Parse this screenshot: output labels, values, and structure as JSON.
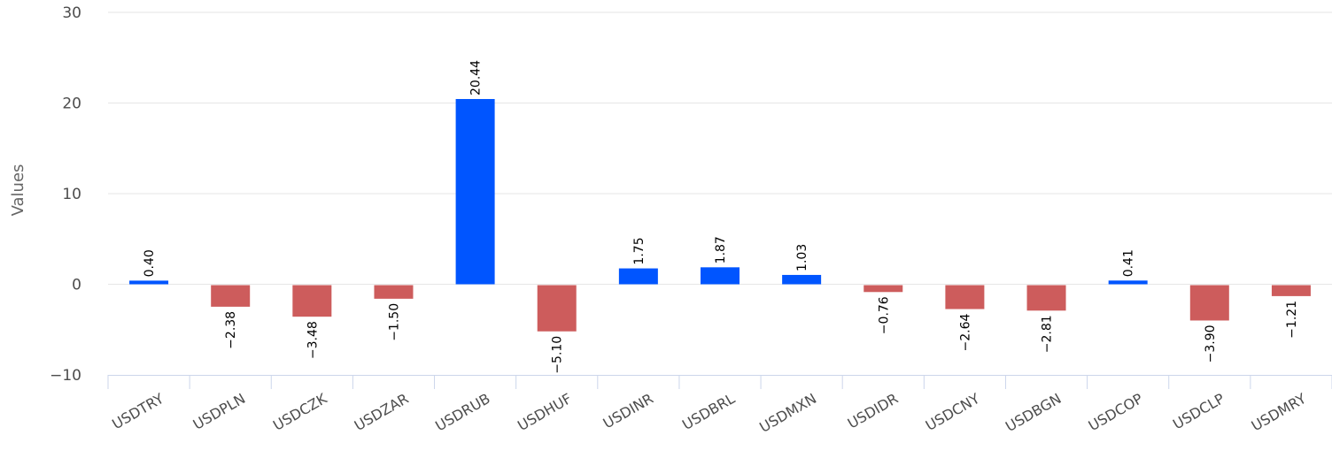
{
  "chart_data": {
    "type": "bar",
    "title": "",
    "xlabel": "",
    "ylabel": "Values",
    "ylim": [
      -10,
      30
    ],
    "yticks": [
      -10,
      0,
      10,
      20,
      30
    ],
    "grid": true,
    "categories": [
      "USDTRY",
      "USDPLN",
      "USDCZK",
      "USDZAR",
      "USDRUB",
      "USDHUF",
      "USDINR",
      "USDBRL",
      "USDMXN",
      "USDIDR",
      "USDCNY",
      "USDBGN",
      "USDCOP",
      "USDCLP",
      "USDMRY"
    ],
    "values": [
      0.4,
      -2.38,
      -3.48,
      -1.5,
      20.44,
      -5.1,
      1.75,
      1.87,
      1.03,
      -0.76,
      -2.64,
      -2.81,
      0.41,
      -3.9,
      -1.21
    ],
    "data_labels": [
      "0.40",
      "−2.38",
      "−3.48",
      "−1.50",
      "20.44",
      "−5.10",
      "1.75",
      "1.87",
      "1.03",
      "−0.76",
      "−2.64",
      "−2.81",
      "0.41",
      "−3.90",
      "−1.21"
    ],
    "ytick_labels": [
      "−10",
      "0",
      "10",
      "20",
      "30"
    ],
    "colors": {
      "positive": "#0055ff",
      "negative": "#cd5c5c"
    }
  }
}
